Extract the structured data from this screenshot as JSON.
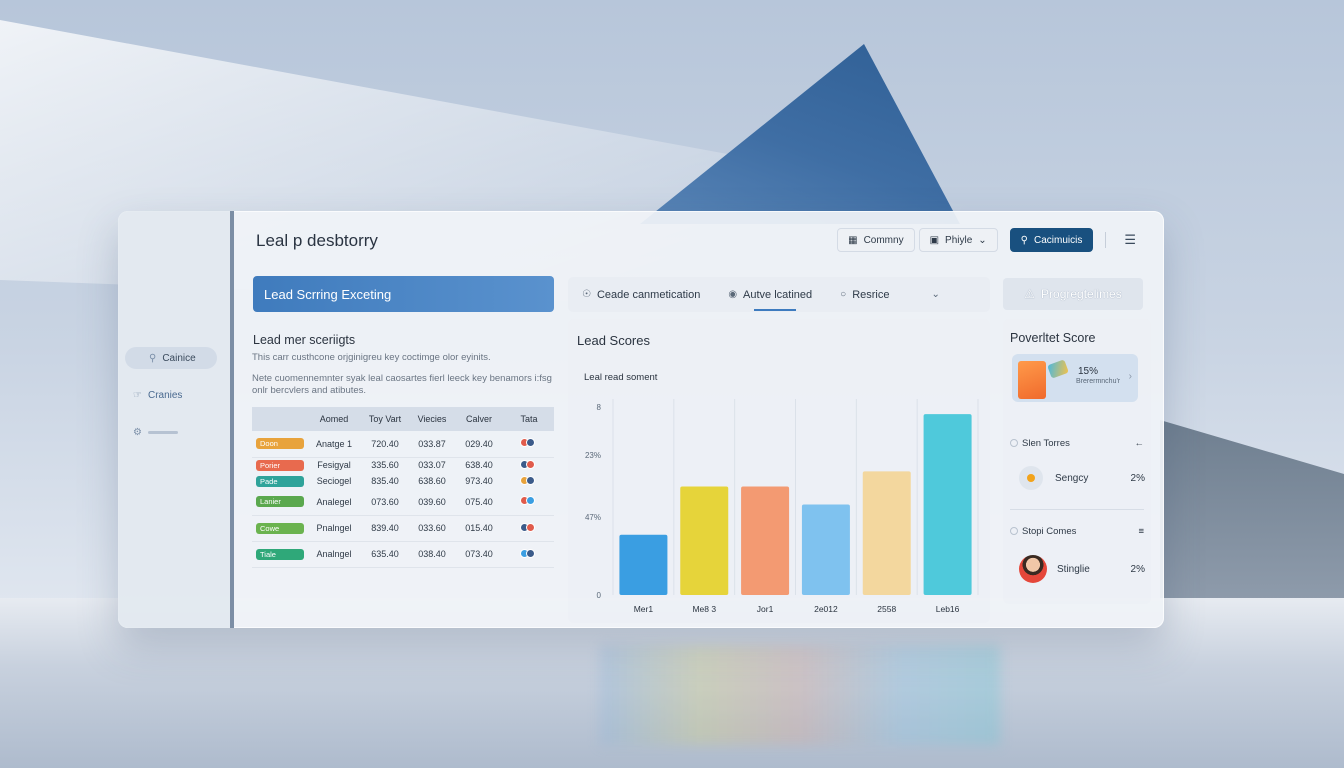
{
  "app": {
    "title": "Leal p desbtorry"
  },
  "sidebar": {
    "items": [
      {
        "label": "Cainice",
        "icon": "search-icon"
      },
      {
        "label": "Cranies",
        "icon": "thumbs-up-icon"
      },
      {
        "label": "",
        "icon": "gear-icon"
      }
    ]
  },
  "toolbar": {
    "company_label": "Commny",
    "profile_label": "Phiyle",
    "search_button_label": "Cacimuicis"
  },
  "left": {
    "banner": "Lead Scrring Exceting",
    "section_title": "Lead mer sceriigts",
    "desc1": "This carr custhcone orjginigreu key coctimge olor eyinits.",
    "desc2": "Nete cuomennemnter syak leal caosartes fierl leeck key benamors i:fsg onlr bercvlers and atibutes.",
    "table": {
      "headers": [
        "",
        "Aomed",
        "Toy Vart",
        "Viecies",
        "Calver",
        "Tata"
      ],
      "rows": [
        {
          "tag": "Doon",
          "tag_color": "#e8a33c",
          "name": "Anatge 1",
          "c1": "720.40",
          "c2": "033.87",
          "c3": "029.40"
        },
        {
          "tag": "Porier",
          "tag_color": "#e86a4e",
          "name": "Fesigyal",
          "c1": "335.60",
          "c2": "033.07",
          "c3": "638.40"
        },
        {
          "tag": "Pade",
          "tag_color": "#2fa39a",
          "name": "Seciogel",
          "c1": "835.40",
          "c2": "638.60",
          "c3": "973.40"
        },
        {
          "tag": "Lanier",
          "tag_color": "#5aa84e",
          "name": "Analegel",
          "c1": "073.60",
          "c2": "039.60",
          "c3": "075.40"
        },
        {
          "tag": "Cowe",
          "tag_color": "#6bb34f",
          "name": "Pnalngel",
          "c1": "839.40",
          "c2": "033.60",
          "c3": "015.40"
        },
        {
          "tag": "Tiale",
          "tag_color": "#2fa879",
          "name": "Analngel",
          "c1": "635.40",
          "c2": "038.40",
          "c3": "073.40"
        }
      ]
    }
  },
  "tabs": [
    {
      "label": "Ceade canmetication",
      "icon": "shield-icon",
      "active": false
    },
    {
      "label": "Autve lcatined",
      "icon": "lock-icon",
      "active": true
    },
    {
      "label": "Resrice",
      "icon": "circle-icon",
      "active": false
    }
  ],
  "chart_card": {
    "title": "Lead Scores"
  },
  "chart_data": {
    "type": "bar",
    "title": "Leal read soment",
    "y_tick_labels": [
      "0",
      "47%",
      "23%",
      "8"
    ],
    "categories": [
      "Mer1",
      "Me8 3",
      "Jor1",
      "2e012",
      "2558",
      "Leb16"
    ],
    "values": [
      20,
      36,
      36,
      30,
      41,
      60
    ],
    "colors": [
      "#3a9ee2",
      "#e6d43a",
      "#f39a72",
      "#7fc2ef",
      "#f3d79e",
      "#4fc9db"
    ],
    "ylim": [
      0,
      65
    ],
    "grid": true
  },
  "right": {
    "button_label": "Progregtelimes",
    "card_title": "Poverltet Score",
    "promo_pct": "15%",
    "promo_sub": "Brerermnchu'r",
    "section1_title": "Slen Torres",
    "section1_item": {
      "label": "Sengcy",
      "value": "2%"
    },
    "section2_title": "Stopi Comes",
    "section2_item": {
      "label": "Stinglie",
      "value": "2%"
    }
  }
}
